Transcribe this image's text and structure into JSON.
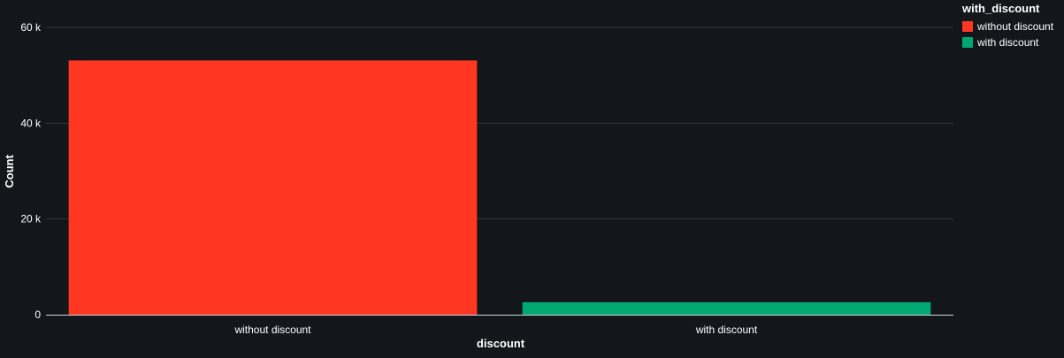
{
  "chart_data": {
    "type": "bar",
    "title": "",
    "xlabel": "discount",
    "ylabel": "Count",
    "categories": [
      "without discount",
      "with discount"
    ],
    "values": [
      53100,
      2600
    ],
    "colors": [
      "#ff3621",
      "#00a972"
    ],
    "ylim": [
      0,
      60000
    ],
    "yticks": [
      0,
      20000,
      40000,
      60000
    ],
    "ytick_labels": [
      "0",
      "20 k",
      "40 k",
      "60 k"
    ],
    "grid": true,
    "legend": {
      "title": "with_discount",
      "placement": "top-right",
      "items": [
        {
          "label": "without discount",
          "color": "#ff3621"
        },
        {
          "label": "with discount",
          "color": "#00a972"
        }
      ]
    }
  },
  "theme": {
    "background": "#13171c",
    "grid_color": "#2c3a2c",
    "axis_color": "#cfd4da",
    "text_color": "#ffffff"
  }
}
